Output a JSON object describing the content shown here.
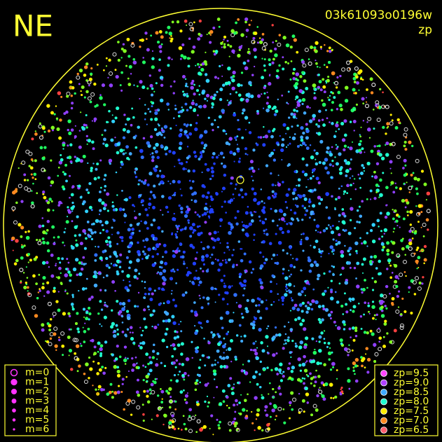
{
  "header": {
    "direction": "NE",
    "frame_id": "03k61093o0196w",
    "mode": "zp"
  },
  "magnitude_legend": [
    {
      "label": "m=0"
    },
    {
      "label": "m=1"
    },
    {
      "label": "m=2"
    },
    {
      "label": "m=3"
    },
    {
      "label": "m=4"
    },
    {
      "label": "m=5"
    },
    {
      "label": "m=6"
    }
  ],
  "zp_legend": [
    {
      "label": "zp=9.5",
      "color": "#ff44ff"
    },
    {
      "label": "zp=9.0",
      "color": "#b040ff"
    },
    {
      "label": "zp=8.5",
      "color": "#40a8ff"
    },
    {
      "label": "zp=8.0",
      "color": "#20ffd0"
    },
    {
      "label": "zp=7.5",
      "color": "#ffee00"
    },
    {
      "label": "zp=7.0",
      "color": "#ff8a20"
    },
    {
      "label": "zp=6.5",
      "color": "#ff6070"
    }
  ]
}
